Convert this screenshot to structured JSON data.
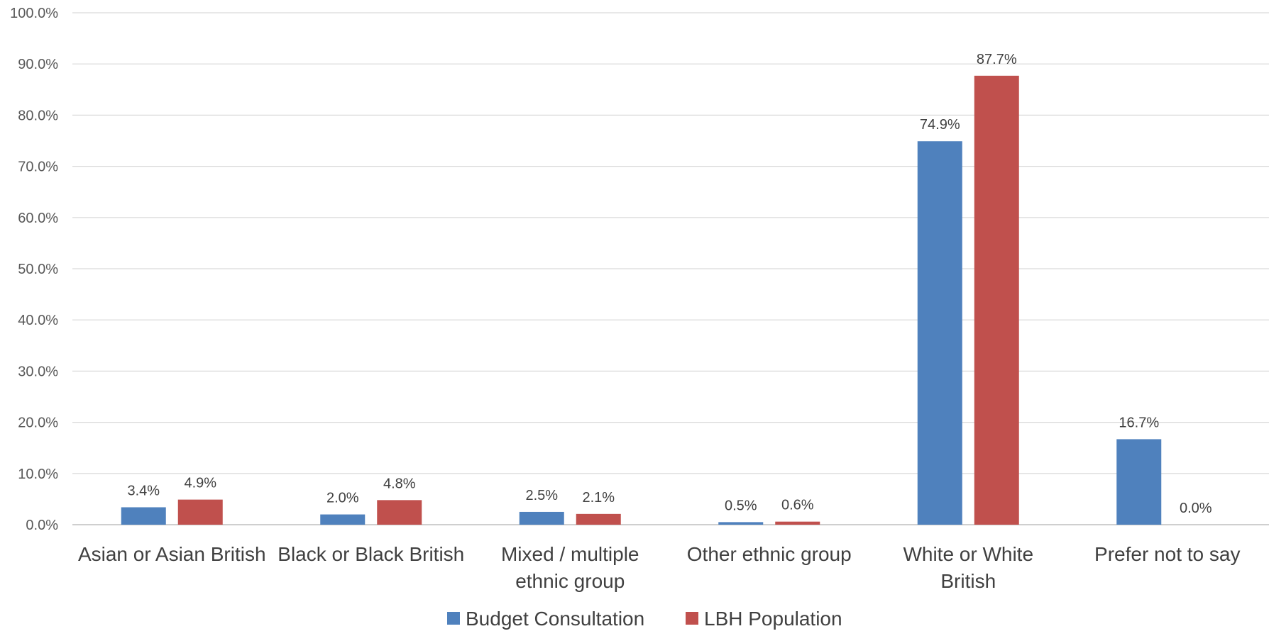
{
  "chart_data": {
    "type": "bar",
    "title": "",
    "xlabel": "",
    "ylabel": "",
    "ylim": [
      0,
      100
    ],
    "yticks": [
      0,
      10,
      20,
      30,
      40,
      50,
      60,
      70,
      80,
      90,
      100
    ],
    "ytick_labels": [
      "0.0%",
      "10.0%",
      "20.0%",
      "30.0%",
      "40.0%",
      "50.0%",
      "60.0%",
      "70.0%",
      "80.0%",
      "90.0%",
      "100.0%"
    ],
    "grid": true,
    "legend_position": "bottom",
    "categories": [
      [
        "Asian or Asian British"
      ],
      [
        "Black or Black British"
      ],
      [
        "Mixed / multiple",
        "ethnic group"
      ],
      [
        "Other ethnic group"
      ],
      [
        "White or White",
        "British"
      ],
      [
        "Prefer not to say"
      ]
    ],
    "series": [
      {
        "name": "Budget Consultation",
        "color": "#4f81bd",
        "values": [
          3.4,
          2.0,
          2.5,
          0.5,
          74.9,
          16.7
        ],
        "labels": [
          "3.4%",
          "2.0%",
          "2.5%",
          "0.5%",
          "74.9%",
          "16.7%"
        ]
      },
      {
        "name": "LBH Population",
        "color": "#c0504d",
        "values": [
          4.9,
          4.8,
          2.1,
          0.6,
          87.7,
          0.0
        ],
        "labels": [
          "4.9%",
          "4.8%",
          "2.1%",
          "0.6%",
          "87.7%",
          "0.0%"
        ]
      }
    ]
  }
}
